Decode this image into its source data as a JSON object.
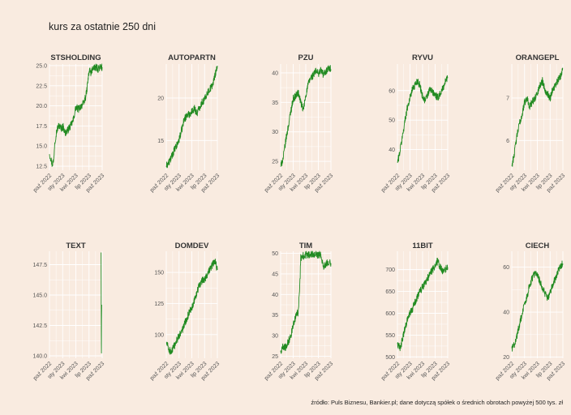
{
  "title": "kurs za ostatnie 250 dni",
  "caption": "źródło: Puls Biznesu, Bankier.pl; dane dotyczą spółek o średnich obrotach powyżej 500 tys. zł",
  "colors": {
    "background": "#f9ebe0",
    "line": "#228b22",
    "grid": "#ffffff"
  },
  "chart_data": [
    {
      "type": "line",
      "title": "STSHOLDING",
      "x_ticks": [
        "paź 2022",
        "sty 2023",
        "kwi 2023",
        "lip 2023",
        "paź 2023"
      ],
      "ylim": [
        12.0,
        25.2
      ],
      "y_ticks": [
        12.5,
        15.0,
        17.5,
        20.0,
        22.5,
        25.0
      ],
      "y_tick_labels": [
        "12.5",
        "15.0",
        "17.5",
        "20.0",
        "22.5",
        "25.0"
      ],
      "x_start": 0.0,
      "x": [
        0,
        3,
        5,
        8,
        10,
        14,
        18,
        22,
        26,
        30,
        35,
        40,
        45,
        50,
        55,
        60,
        65,
        70,
        73,
        76,
        79,
        82,
        85,
        88,
        92,
        96,
        100
      ],
      "values": [
        14.0,
        13.4,
        12.7,
        13.2,
        15.5,
        17.0,
        17.6,
        17.2,
        17.4,
        16.6,
        17.0,
        17.5,
        18.2,
        19.8,
        19.6,
        20.0,
        20.3,
        21.5,
        23.2,
        24.5,
        24.0,
        24.8,
        24.6,
        24.8,
        24.6,
        24.8,
        24.8
      ]
    },
    {
      "type": "line",
      "title": "AUTOPARTN",
      "x_ticks": [
        "paź 2022",
        "sty 2023",
        "kwi 2023",
        "lip 2023",
        "paź 2023"
      ],
      "ylim": [
        11.5,
        24.0
      ],
      "y_ticks": [
        15,
        20
      ],
      "y_tick_labels": [
        "15",
        "20"
      ],
      "x_start": 0.0,
      "x": [
        0,
        5,
        10,
        15,
        20,
        25,
        30,
        35,
        40,
        45,
        50,
        55,
        60,
        65,
        70,
        75,
        80,
        85,
        88,
        92,
        96,
        100
      ],
      "values": [
        12.0,
        12.4,
        13.0,
        13.8,
        14.3,
        15.1,
        16.2,
        17.5,
        17.9,
        18.1,
        18.4,
        18.8,
        18.2,
        18.9,
        19.5,
        19.8,
        20.6,
        21.0,
        21.3,
        21.8,
        22.9,
        23.8
      ]
    },
    {
      "type": "line",
      "title": "PZU",
      "x_ticks": [
        "paź 2022",
        "sty 2023",
        "kwi 2023",
        "lip 2023",
        "paź 2023"
      ],
      "ylim": [
        23.5,
        41.5
      ],
      "y_ticks": [
        25,
        30,
        35,
        40
      ],
      "y_tick_labels": [
        "25",
        "30",
        "35",
        "40"
      ],
      "x_start": 0.0,
      "x": [
        0,
        5,
        10,
        15,
        20,
        25,
        30,
        35,
        40,
        45,
        50,
        55,
        60,
        65,
        70,
        75,
        80,
        85,
        90,
        95,
        100
      ],
      "values": [
        24.2,
        25.5,
        28.4,
        30.8,
        33.4,
        35.6,
        36.1,
        36.6,
        35.1,
        33.6,
        36.2,
        38.1,
        39.2,
        39.6,
        40.3,
        39.9,
        40.5,
        39.7,
        40.2,
        40.8,
        40.6
      ]
    },
    {
      "type": "line",
      "title": "RYVU",
      "x_ticks": [
        "paź 2022",
        "sty 2023",
        "kwi 2023",
        "lip 2023",
        "paź 2023"
      ],
      "ylim": [
        33.0,
        69.0
      ],
      "y_ticks": [
        40,
        50,
        60
      ],
      "y_tick_labels": [
        "40",
        "50",
        "60"
      ],
      "x_start": 0.0,
      "x": [
        0,
        4,
        8,
        12,
        16,
        20,
        25,
        30,
        35,
        40,
        45,
        50,
        55,
        60,
        65,
        70,
        75,
        80,
        85,
        90,
        95,
        100
      ],
      "values": [
        35.5,
        38.5,
        42.5,
        46.5,
        51.0,
        54.5,
        57.5,
        60.5,
        62.0,
        63.5,
        61.5,
        58.0,
        56.5,
        58.5,
        60.5,
        59.5,
        58.5,
        57.5,
        59.0,
        60.5,
        63.0,
        64.5
      ]
    },
    {
      "type": "line",
      "title": "ORANGEPL",
      "x_ticks": [
        "paź 2022",
        "sty 2023",
        "kwi 2023",
        "lip 2023",
        "paź 2023"
      ],
      "ylim": [
        5.3,
        7.8
      ],
      "y_ticks": [
        6,
        7
      ],
      "y_tick_labels": [
        "6",
        "7"
      ],
      "x_start": 0.0,
      "x": [
        0,
        5,
        10,
        15,
        20,
        25,
        30,
        35,
        40,
        45,
        50,
        55,
        60,
        65,
        70,
        75,
        80,
        85,
        90,
        95,
        100
      ],
      "values": [
        5.4,
        5.7,
        6.1,
        6.4,
        6.6,
        6.9,
        7.0,
        6.8,
        6.9,
        7.0,
        7.1,
        7.3,
        7.4,
        7.2,
        7.1,
        7.0,
        7.2,
        7.3,
        7.4,
        7.5,
        7.7
      ]
    },
    {
      "type": "line",
      "title": "TEXT",
      "x_ticks": [
        "paź 2022",
        "sty 2023",
        "kwi 2023",
        "lip 2023",
        "paź 2023"
      ],
      "ylim": [
        139.8,
        148.6
      ],
      "y_ticks": [
        140.0,
        142.5,
        145.0,
        147.5
      ],
      "y_tick_labels": [
        "140.0",
        "142.5",
        "145.0",
        "147.5"
      ],
      "x_start": 0.0,
      "x": [
        97.8,
        98.0,
        98.3,
        98.6,
        98.8,
        99.1
      ],
      "values": [
        148.5,
        146.0,
        141.8,
        140.0,
        143.0,
        144.2
      ]
    },
    {
      "type": "line",
      "title": "DOMDEV",
      "x_ticks": [
        "paź 2022",
        "sty 2023",
        "kwi 2023",
        "lip 2023",
        "paź 2023"
      ],
      "ylim": [
        81.0,
        167.0
      ],
      "y_ticks": [
        100,
        125,
        150
      ],
      "y_tick_labels": [
        "100",
        "125",
        "150"
      ],
      "x_start": 0.0,
      "x": [
        0,
        5,
        10,
        15,
        20,
        25,
        30,
        35,
        40,
        45,
        50,
        55,
        60,
        65,
        70,
        75,
        80,
        85,
        90,
        95,
        100
      ],
      "values": [
        94.0,
        88.0,
        86.0,
        90.0,
        95.0,
        99.0,
        102.0,
        108.0,
        113.0,
        118.0,
        122.0,
        128.0,
        134.0,
        140.0,
        143.0,
        145.0,
        148.0,
        152.0,
        156.0,
        160.0,
        152.0
      ]
    },
    {
      "type": "line",
      "title": "TIM",
      "x_ticks": [
        "paź 2022",
        "sty 2023",
        "kwi 2023",
        "lip 2023",
        "paź 2023"
      ],
      "ylim": [
        24.5,
        50.5
      ],
      "y_ticks": [
        25,
        30,
        35,
        40,
        45,
        50
      ],
      "y_tick_labels": [
        "25",
        "30",
        "35",
        "40",
        "45",
        "50"
      ],
      "x_start": 0.0,
      "x": [
        0,
        5,
        10,
        15,
        20,
        25,
        30,
        35,
        38,
        40,
        42,
        45,
        50,
        55,
        60,
        65,
        70,
        75,
        80,
        85,
        90,
        95,
        100
      ],
      "values": [
        26.0,
        27.5,
        27.2,
        28.5,
        30.0,
        32.5,
        34.5,
        35.8,
        42.0,
        48.8,
        49.2,
        49.4,
        49.6,
        49.6,
        49.8,
        49.9,
        49.9,
        49.6,
        49.8,
        46.8,
        47.5,
        48.0,
        47.6
      ]
    },
    {
      "type": "line",
      "title": "11BIT",
      "x_ticks": [
        "paź 2022",
        "sty 2023",
        "kwi 2023",
        "lip 2023",
        "paź 2023"
      ],
      "ylim": [
        497.0,
        742.0
      ],
      "y_ticks": [
        500,
        550,
        600,
        650,
        700
      ],
      "y_tick_labels": [
        "500",
        "550",
        "600",
        "650",
        "700"
      ],
      "x_start": 0.0,
      "x": [
        0,
        5,
        10,
        15,
        20,
        25,
        30,
        35,
        40,
        45,
        50,
        55,
        60,
        65,
        70,
        75,
        80,
        85,
        90,
        95,
        100
      ],
      "values": [
        530.0,
        520.0,
        540.0,
        565.0,
        585.0,
        600.0,
        610.0,
        625.0,
        640.0,
        650.0,
        660.0,
        670.0,
        680.0,
        690.0,
        700.0,
        710.0,
        720.0,
        705.0,
        695.0,
        700.0,
        705.0
      ]
    },
    {
      "type": "line",
      "title": "CIECH",
      "x_ticks": [
        "paź 2022",
        "sty 2023",
        "kwi 2023",
        "lip 2023",
        "paź 2023"
      ],
      "ylim": [
        19.5,
        67.0
      ],
      "y_ticks": [
        20,
        40,
        60
      ],
      "y_tick_labels": [
        "20",
        "40",
        "60"
      ],
      "x_start": 0.0,
      "x": [
        0,
        5,
        10,
        15,
        20,
        25,
        30,
        35,
        40,
        45,
        50,
        55,
        60,
        65,
        70,
        75,
        80,
        85,
        90,
        95,
        100
      ],
      "values": [
        24.0,
        25.5,
        29.5,
        34.5,
        39.0,
        43.5,
        47.0,
        52.0,
        55.0,
        57.5,
        56.0,
        53.5,
        51.0,
        48.0,
        46.0,
        49.0,
        52.0,
        55.0,
        57.5,
        60.5,
        61.5
      ]
    }
  ]
}
